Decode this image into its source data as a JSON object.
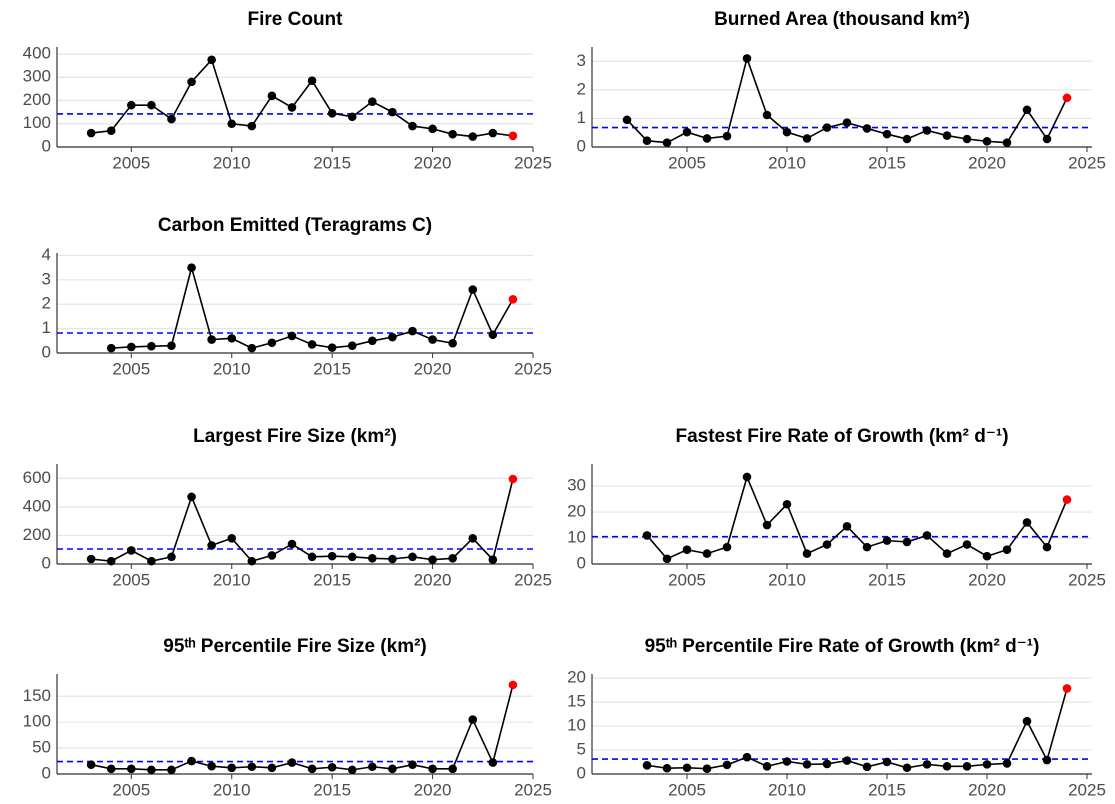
{
  "chart_data": [
    {
      "type": "line",
      "title": "Fire Count",
      "x": [
        2003,
        2004,
        2005,
        2006,
        2007,
        2008,
        2009,
        2010,
        2011,
        2012,
        2013,
        2014,
        2015,
        2016,
        2017,
        2018,
        2019,
        2020,
        2021,
        2022,
        2023,
        2024
      ],
      "values": [
        60,
        70,
        180,
        180,
        120,
        280,
        375,
        100,
        90,
        220,
        170,
        285,
        145,
        130,
        195,
        150,
        90,
        78,
        55,
        45,
        60,
        48
      ],
      "color": "#000000",
      "highlight_last": true,
      "highlight_color": "#ff0000",
      "mean_line": {
        "value": 142,
        "color": "#0000ff",
        "style": "dashed"
      },
      "xlim": [
        2001.3,
        2025
      ],
      "xticks": [
        2005,
        2010,
        2015,
        2020,
        2025
      ],
      "ylim": [
        0,
        430
      ],
      "yticks": [
        0,
        100,
        200,
        300,
        400
      ],
      "grid": true
    },
    {
      "type": "line",
      "title": "Burned Area (thousand km²)",
      "x": [
        2002,
        2003,
        2004,
        2005,
        2006,
        2007,
        2008,
        2009,
        2010,
        2011,
        2012,
        2013,
        2014,
        2015,
        2016,
        2017,
        2018,
        2019,
        2020,
        2021,
        2022,
        2023,
        2024
      ],
      "values": [
        0.95,
        0.22,
        0.15,
        0.52,
        0.3,
        0.38,
        3.1,
        1.12,
        0.52,
        0.3,
        0.68,
        0.85,
        0.65,
        0.45,
        0.28,
        0.58,
        0.4,
        0.28,
        0.2,
        0.15,
        1.3,
        0.28,
        1.72
      ],
      "color": "#000000",
      "highlight_last": true,
      "highlight_color": "#ff0000",
      "mean_line": {
        "value": 0.68,
        "color": "#0000ff",
        "style": "dashed"
      },
      "xlim": [
        2000.25,
        2025.25
      ],
      "xticks": [
        2005,
        2010,
        2015,
        2020,
        2025
      ],
      "ylim": [
        0,
        3.5
      ],
      "yticks": [
        0,
        1,
        2,
        3
      ],
      "grid": true
    },
    {
      "type": "line",
      "title": "Carbon Emitted (Teragrams C)",
      "x": [
        2004,
        2005,
        2006,
        2007,
        2008,
        2009,
        2010,
        2011,
        2012,
        2013,
        2014,
        2015,
        2016,
        2017,
        2018,
        2019,
        2020,
        2021,
        2022,
        2023,
        2024
      ],
      "values": [
        0.2,
        0.25,
        0.28,
        0.3,
        3.5,
        0.55,
        0.6,
        0.2,
        0.42,
        0.7,
        0.35,
        0.22,
        0.3,
        0.5,
        0.65,
        0.9,
        0.55,
        0.4,
        2.6,
        0.75,
        2.2
      ],
      "color": "#000000",
      "highlight_last": true,
      "highlight_color": "#ff0000",
      "mean_line": {
        "value": 0.82,
        "color": "#0000ff",
        "style": "dashed"
      },
      "xlim": [
        2001.3,
        2025
      ],
      "xticks": [
        2005,
        2010,
        2015,
        2020,
        2025
      ],
      "ylim": [
        0,
        4.1
      ],
      "yticks": [
        0,
        1,
        2,
        3,
        4
      ],
      "grid": true
    },
    {
      "type": "line",
      "title": "Largest Fire Size (km²)",
      "x": [
        2003,
        2004,
        2005,
        2006,
        2007,
        2008,
        2009,
        2010,
        2011,
        2012,
        2013,
        2014,
        2015,
        2016,
        2017,
        2018,
        2019,
        2020,
        2021,
        2022,
        2023,
        2024
      ],
      "values": [
        35,
        20,
        95,
        20,
        50,
        470,
        130,
        180,
        20,
        60,
        140,
        50,
        55,
        50,
        40,
        35,
        50,
        30,
        40,
        180,
        30,
        595
      ],
      "color": "#000000",
      "highlight_last": true,
      "highlight_color": "#ff0000",
      "mean_line": {
        "value": 105,
        "color": "#0000ff",
        "style": "dashed"
      },
      "xlim": [
        2001.3,
        2025
      ],
      "xticks": [
        2005,
        2010,
        2015,
        2020,
        2025
      ],
      "ylim": [
        0,
        700
      ],
      "yticks": [
        0,
        200,
        400,
        600
      ],
      "grid": true
    },
    {
      "type": "line",
      "title": "Fastest Fire Rate of Growth (km² d⁻¹)",
      "x": [
        2003,
        2004,
        2005,
        2006,
        2007,
        2008,
        2009,
        2010,
        2011,
        2012,
        2013,
        2014,
        2015,
        2016,
        2017,
        2018,
        2019,
        2020,
        2021,
        2022,
        2023,
        2024
      ],
      "values": [
        11,
        2,
        5.5,
        4,
        6.5,
        33.5,
        15,
        23,
        4,
        7.5,
        14.5,
        6.5,
        9,
        8.5,
        11,
        4,
        7.5,
        3,
        5.5,
        16,
        6.5,
        24.8
      ],
      "color": "#000000",
      "highlight_last": true,
      "highlight_color": "#ff0000",
      "mean_line": {
        "value": 10.5,
        "color": "#0000ff",
        "style": "dashed"
      },
      "xlim": [
        2000.25,
        2025.25
      ],
      "xticks": [
        2005,
        2010,
        2015,
        2020,
        2025
      ],
      "ylim": [
        0,
        38.5
      ],
      "yticks": [
        0,
        10,
        20,
        30
      ],
      "grid": true
    },
    {
      "type": "line",
      "title": "95ᵗʰ Percentile Fire Size (km²)",
      "x": [
        2003,
        2004,
        2005,
        2006,
        2007,
        2008,
        2009,
        2010,
        2011,
        2012,
        2013,
        2014,
        2015,
        2016,
        2017,
        2018,
        2019,
        2020,
        2021,
        2022,
        2023,
        2024
      ],
      "values": [
        18,
        10,
        10,
        8,
        8,
        25,
        15,
        12,
        14,
        12,
        22,
        10,
        13,
        8,
        14,
        10,
        18,
        10,
        10,
        105,
        22,
        172
      ],
      "color": "#000000",
      "highlight_last": true,
      "highlight_color": "#ff0000",
      "mean_line": {
        "value": 24,
        "color": "#0000ff",
        "style": "dashed"
      },
      "xlim": [
        2001.3,
        2025
      ],
      "xticks": [
        2005,
        2010,
        2015,
        2020,
        2025
      ],
      "ylim": [
        0,
        193
      ],
      "yticks": [
        0,
        50,
        100,
        150
      ],
      "grid": true
    },
    {
      "type": "line",
      "title": "95ᵗʰ Percentile Fire Rate of Growth (km² d⁻¹)",
      "x": [
        2003,
        2004,
        2005,
        2006,
        2007,
        2008,
        2009,
        2010,
        2011,
        2012,
        2013,
        2014,
        2015,
        2016,
        2017,
        2018,
        2019,
        2020,
        2021,
        2022,
        2023,
        2024
      ],
      "values": [
        1.8,
        1.2,
        1.3,
        1.1,
        1.9,
        3.5,
        1.6,
        2.6,
        2,
        2.1,
        2.8,
        1.5,
        2.5,
        1.3,
        2,
        1.6,
        1.6,
        2,
        2.2,
        11,
        2.9,
        17.8
      ],
      "color": "#000000",
      "highlight_last": true,
      "highlight_color": "#ff0000",
      "mean_line": {
        "value": 3.1,
        "color": "#0000ff",
        "style": "dashed"
      },
      "xlim": [
        2000.25,
        2025.25
      ],
      "xticks": [
        2005,
        2010,
        2015,
        2020,
        2025
      ],
      "ylim": [
        0,
        20.8
      ],
      "yticks": [
        0,
        5,
        10,
        15,
        20
      ],
      "grid": true
    }
  ]
}
